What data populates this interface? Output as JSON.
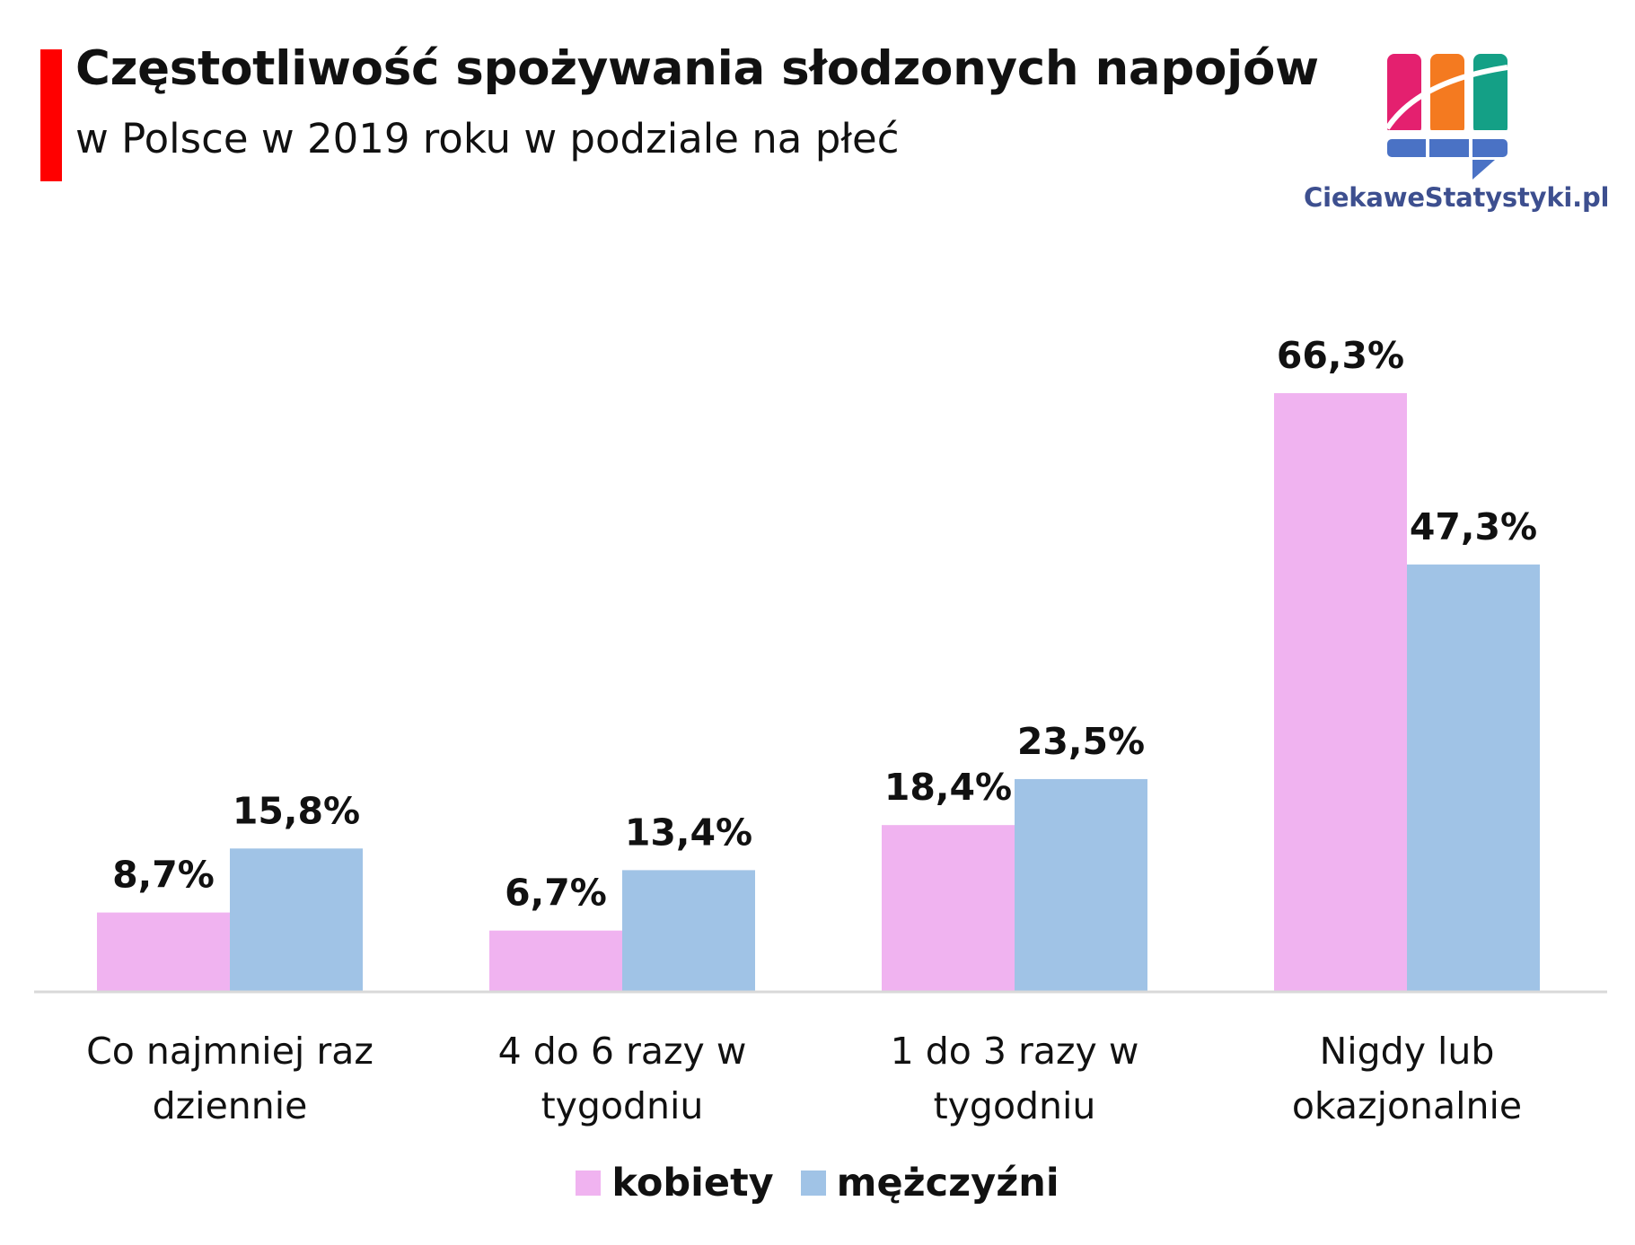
{
  "header": {
    "title": "Częstotliwość spożywania słodzonych napojów",
    "subtitle": "w Polsce w 2019 roku w podziale na płeć",
    "accent_color": "#ff0000"
  },
  "logo": {
    "text": "CiekaweStatystyki.pl",
    "text_color": "#3d4f8f",
    "colors": [
      "#e4206f",
      "#f47a20",
      "#14a086",
      "#4a72c5"
    ]
  },
  "chart_data": {
    "type": "bar",
    "title": "Częstotliwość spożywania słodzonych napojów",
    "subtitle": "w Polsce w 2019 roku w podziale na płeć",
    "categories": [
      [
        "Co najmniej raz",
        "dziennie"
      ],
      [
        "4 do 6 razy w",
        "tygodniu"
      ],
      [
        "1 do 3 razy w",
        "tygodniu"
      ],
      [
        "Nigdy lub",
        "okazjonalnie"
      ]
    ],
    "series": [
      {
        "name": "kobiety",
        "color": "#f0b3f0",
        "values": [
          8.7,
          6.7,
          18.4,
          66.3
        ],
        "labels": [
          "8,7%",
          "6,7%",
          "18,4%",
          "66,3%"
        ]
      },
      {
        "name": "mężczyźni",
        "color": "#a0c3e6",
        "values": [
          15.8,
          13.4,
          23.5,
          47.3
        ],
        "labels": [
          "15,8%",
          "13,4%",
          "23,5%",
          "47,3%"
        ]
      }
    ],
    "ylim": [
      0,
      66.3
    ],
    "grid": false,
    "legend_position": "bottom-center",
    "axis_color": "#d9d9d9"
  }
}
